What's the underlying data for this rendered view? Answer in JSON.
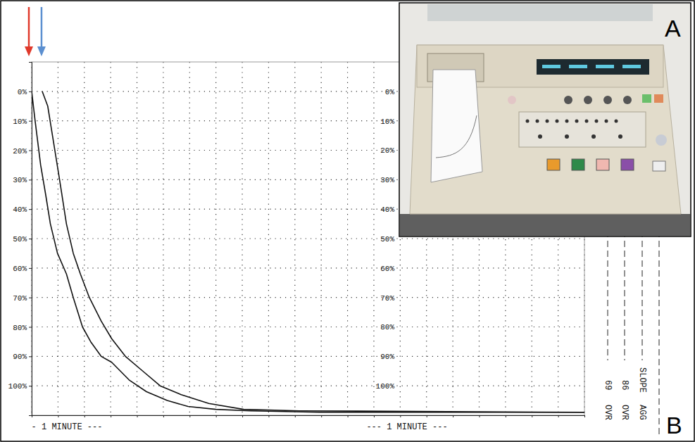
{
  "chart_data": {
    "type": "line",
    "xlim": [
      0,
      210
    ],
    "xticks": [
      0,
      10,
      20,
      30,
      40,
      50,
      60,
      70,
      80,
      90,
      100,
      110,
      120,
      130,
      140,
      150,
      160,
      170,
      180,
      190,
      200,
      210
    ],
    "ylim": [
      -10,
      110
    ],
    "yticks": [
      {
        "value": 0,
        "label": "0%"
      },
      {
        "value": 10,
        "label": "10%"
      },
      {
        "value": 20,
        "label": "20%"
      },
      {
        "value": 30,
        "label": "30%"
      },
      {
        "value": 40,
        "label": "40%"
      },
      {
        "value": 50,
        "label": "50%"
      },
      {
        "value": 60,
        "label": "60%"
      },
      {
        "value": 70,
        "label": "70%"
      },
      {
        "value": 80,
        "label": "80%"
      },
      {
        "value": 90,
        "label": "90%"
      },
      {
        "value": 100,
        "label": "100%"
      }
    ],
    "grid": true,
    "tick_labels": "y",
    "series": [
      {
        "color": "#111111",
        "x": [
          0,
          1.3,
          3.4,
          5.3,
          7.1,
          9.8,
          13.2,
          15.8,
          19.3,
          22.4,
          26.4,
          30.4,
          37,
          43.6,
          51.5,
          59.4,
          70,
          83.2,
          109.6,
          210
        ],
        "values": [
          0,
          10,
          25,
          35,
          45,
          55,
          62,
          70,
          80,
          85,
          90,
          92,
          98,
          102,
          105,
          107,
          108,
          108.5,
          109,
          109
        ]
      },
      {
        "color": "#111111",
        "x": [
          4,
          6.1,
          7.9,
          10.6,
          13.2,
          15.8,
          18.5,
          21.9,
          26.4,
          30.4,
          35.6,
          42.2,
          48.8,
          56.8,
          67.3,
          80.5,
          101.6,
          210
        ],
        "values": [
          0,
          5,
          15,
          30,
          45,
          55,
          62,
          70,
          78,
          84,
          90,
          95,
          100,
          103,
          106,
          108,
          108.5,
          109
        ]
      }
    ],
    "annotations": [
      "- 1 MINUTE ---",
      "--- 1 MINUTE ---",
      "SLOPE",
      "AGG",
      "86",
      "OVR",
      "69",
      "OVR"
    ],
    "panel_labels": [
      "A",
      "B"
    ]
  }
}
